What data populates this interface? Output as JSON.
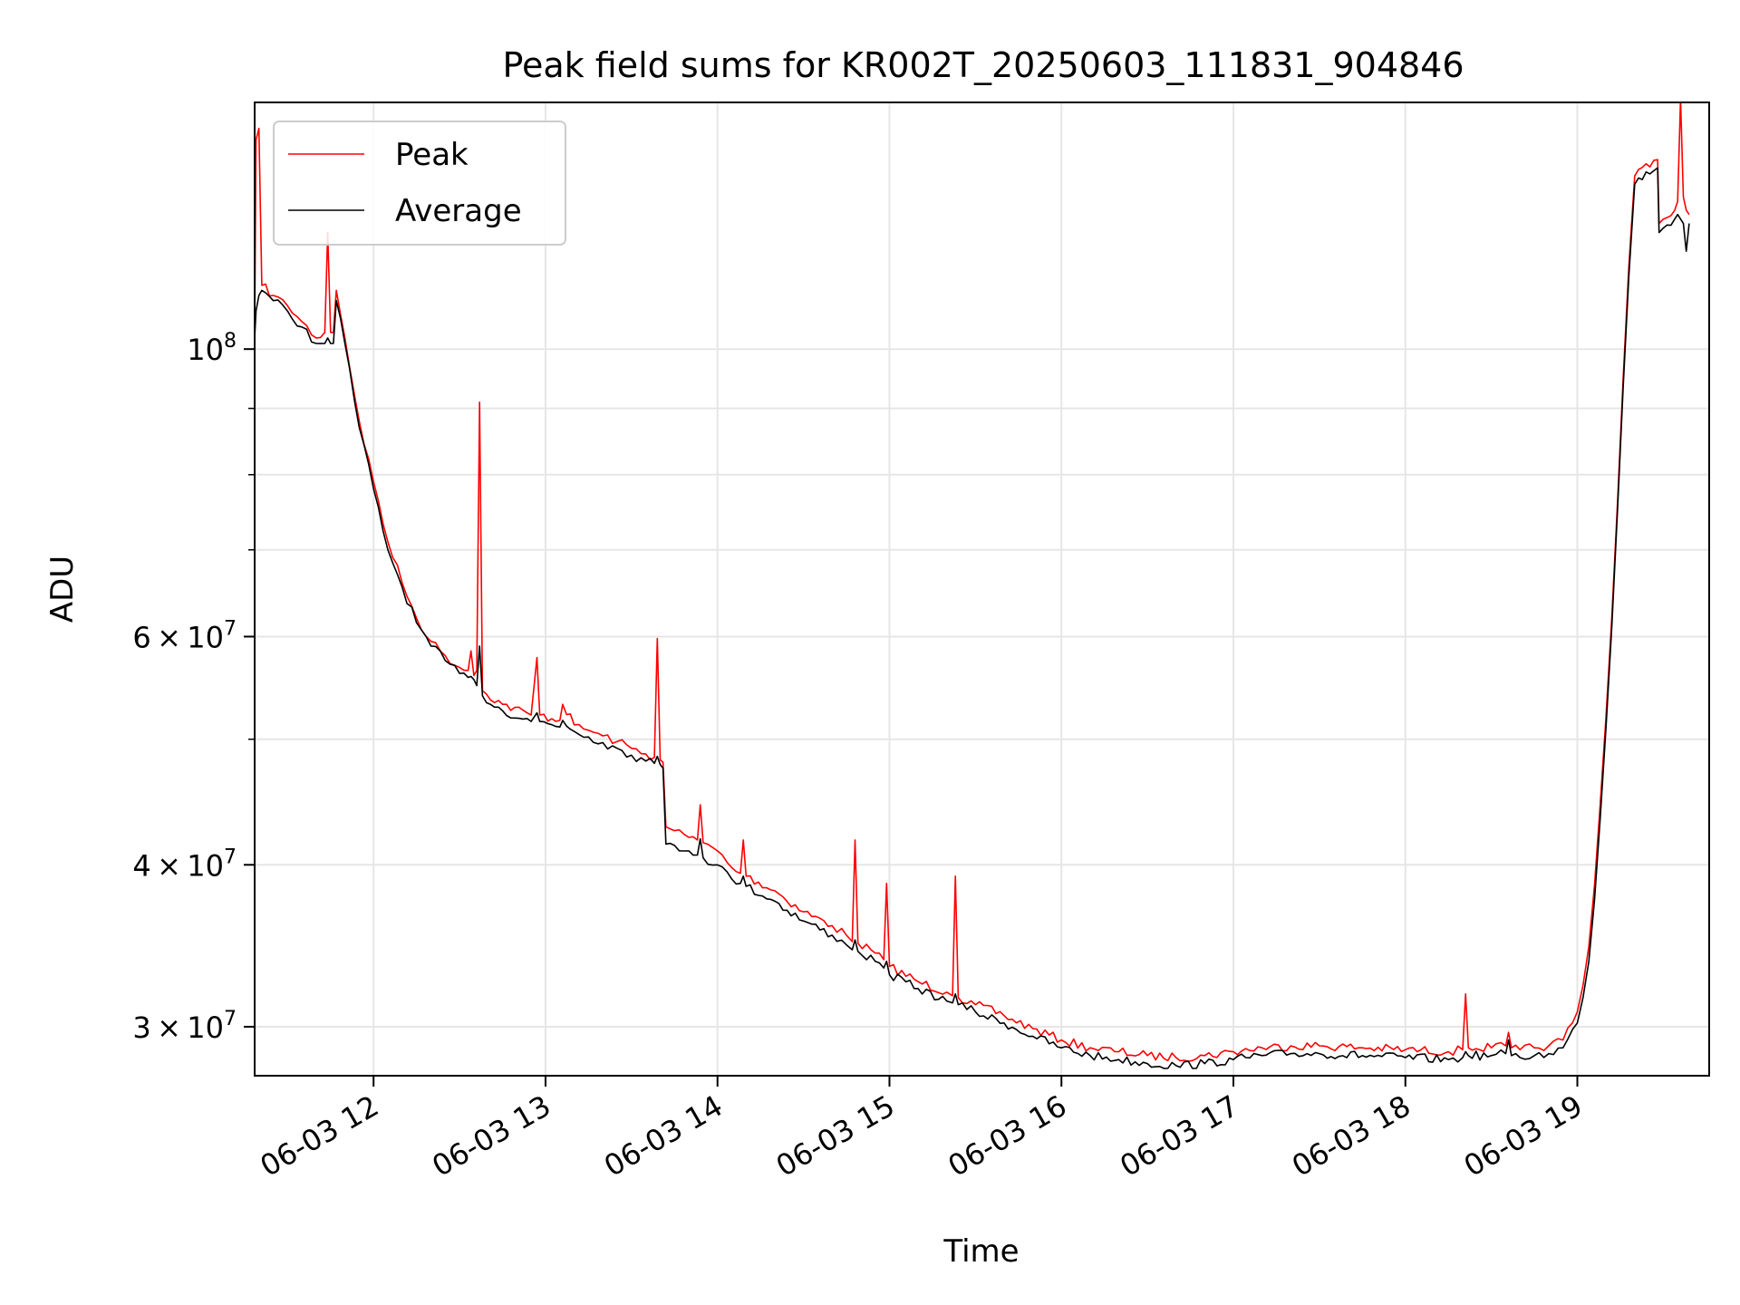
{
  "chart_data": {
    "type": "line",
    "title": "Peak field sums for KR002T_20250603_111831_904846",
    "xlabel": "Time",
    "ylabel": "ADU",
    "yscale": "log",
    "ylim": [
      27500000,
      155000000
    ],
    "xlim": [
      "2025-06-03T11:18:31",
      "2025-06-03T19:46:00"
    ],
    "grid": true,
    "legend_position": "top-left",
    "x_ticks": [
      {
        "value": "2025-06-03T12:00",
        "label": "06-03 12"
      },
      {
        "value": "2025-06-03T13:00",
        "label": "06-03 13"
      },
      {
        "value": "2025-06-03T14:00",
        "label": "06-03 14"
      },
      {
        "value": "2025-06-03T15:00",
        "label": "06-03 15"
      },
      {
        "value": "2025-06-03T16:00",
        "label": "06-03 16"
      },
      {
        "value": "2025-06-03T17:00",
        "label": "06-03 17"
      },
      {
        "value": "2025-06-03T18:00",
        "label": "06-03 18"
      },
      {
        "value": "2025-06-03T19:00",
        "label": "06-03 19"
      }
    ],
    "y_major_ticks": [
      {
        "value": 30000000,
        "mantissa": "3",
        "exponent": "7"
      },
      {
        "value": 40000000,
        "mantissa": "4",
        "exponent": "7"
      },
      {
        "value": 60000000,
        "mantissa": "6",
        "exponent": "7"
      },
      {
        "value": 100000000,
        "mantissa": "",
        "exponent": "8"
      }
    ],
    "y_minor_ticks": [
      50000000,
      70000000,
      80000000,
      90000000
    ],
    "series": [
      {
        "name": "Peak",
        "color": "#ff0000",
        "points": [
          [
            "11:18:31",
            103000000
          ],
          [
            "11:19:00",
            145000000
          ],
          [
            "11:20:00",
            148000000
          ],
          [
            "11:21:00",
            112000000
          ],
          [
            "11:25:00",
            110000000
          ],
          [
            "11:30:00",
            108000000
          ],
          [
            "11:35:00",
            105000000
          ],
          [
            "11:40:00",
            102000000
          ],
          [
            "11:43:00",
            103000000
          ],
          [
            "11:44:00",
            123000000
          ],
          [
            "11:45:00",
            103000000
          ],
          [
            "11:46:00",
            103000000
          ],
          [
            "11:47:00",
            111000000
          ],
          [
            "11:50:00",
            102000000
          ],
          [
            "11:55:00",
            88000000
          ],
          [
            "12:00:00",
            79000000
          ],
          [
            "12:05:00",
            71000000
          ],
          [
            "12:10:00",
            66000000
          ],
          [
            "12:15:00",
            62000000
          ],
          [
            "12:20:00",
            59500000
          ],
          [
            "12:25:00",
            58000000
          ],
          [
            "12:30:00",
            56800000
          ],
          [
            "12:33:00",
            56500000
          ],
          [
            "12:34:00",
            58500000
          ],
          [
            "12:35:00",
            56000000
          ],
          [
            "12:36:00",
            56500000
          ],
          [
            "12:37:00",
            91000000
          ],
          [
            "12:38:00",
            54500000
          ],
          [
            "12:45:00",
            53200000
          ],
          [
            "12:55:00",
            52200000
          ],
          [
            "12:57:00",
            57800000
          ],
          [
            "12:58:00",
            52200000
          ],
          [
            "13:05:00",
            51700000
          ],
          [
            "13:06:00",
            53200000
          ],
          [
            "13:10:00",
            51300000
          ],
          [
            "13:15:00",
            50800000
          ],
          [
            "13:20:00",
            50300000
          ],
          [
            "13:25:00",
            49800000
          ],
          [
            "13:30:00",
            49200000
          ],
          [
            "13:35:00",
            48700000
          ],
          [
            "13:38:00",
            48400000
          ],
          [
            "13:39:00",
            59800000
          ],
          [
            "13:40:00",
            48200000
          ],
          [
            "13:41:00",
            48000000
          ],
          [
            "13:42:00",
            42800000
          ],
          [
            "13:45:00",
            42500000
          ],
          [
            "13:50:00",
            42000000
          ],
          [
            "13:53:00",
            41800000
          ],
          [
            "13:54:00",
            44500000
          ],
          [
            "13:55:00",
            41600000
          ],
          [
            "14:00:00",
            41000000
          ],
          [
            "14:05:00",
            39800000
          ],
          [
            "14:08:00",
            39400000
          ],
          [
            "14:09:00",
            41800000
          ],
          [
            "14:10:00",
            39200000
          ],
          [
            "14:20:00",
            38200000
          ],
          [
            "14:30:00",
            36800000
          ],
          [
            "14:40:00",
            35900000
          ],
          [
            "14:45:00",
            35300000
          ],
          [
            "14:47:00",
            34900000
          ],
          [
            "14:48:00",
            41800000
          ],
          [
            "14:49:00",
            34800000
          ],
          [
            "14:55:00",
            34200000
          ],
          [
            "14:58:00",
            33800000
          ],
          [
            "14:59:00",
            38700000
          ],
          [
            "15:00:00",
            33400000
          ],
          [
            "15:10:00",
            32500000
          ],
          [
            "15:20:00",
            31900000
          ],
          [
            "15:22:00",
            31700000
          ],
          [
            "15:23:00",
            39200000
          ],
          [
            "15:24:00",
            31600000
          ],
          [
            "15:30:00",
            31200000
          ],
          [
            "15:40:00",
            30600000
          ],
          [
            "15:50:00",
            29900000
          ],
          [
            "16:00:00",
            29300000
          ],
          [
            "16:10:00",
            28900000
          ],
          [
            "16:20:00",
            28700000
          ],
          [
            "16:30:00",
            28500000
          ],
          [
            "16:40:00",
            28400000
          ],
          [
            "16:50:00",
            28500000
          ],
          [
            "17:00:00",
            28700000
          ],
          [
            "17:10:00",
            28900000
          ],
          [
            "17:20:00",
            29000000
          ],
          [
            "17:30:00",
            29000000
          ],
          [
            "17:45:00",
            28900000
          ],
          [
            "18:00:00",
            28800000
          ],
          [
            "18:15:00",
            28700000
          ],
          [
            "18:20:00",
            28800000
          ],
          [
            "18:21:00",
            31800000
          ],
          [
            "18:22:00",
            28900000
          ],
          [
            "18:30:00",
            28900000
          ],
          [
            "18:35:00",
            29000000
          ],
          [
            "18:36:00",
            29700000
          ],
          [
            "18:37:00",
            28900000
          ],
          [
            "18:40:00",
            28800000
          ],
          [
            "18:45:00",
            28900000
          ],
          [
            "18:50:00",
            29000000
          ],
          [
            "18:55:00",
            29300000
          ],
          [
            "19:00:00",
            30800000
          ],
          [
            "19:02:00",
            32300000
          ],
          [
            "19:04:00",
            34600000
          ],
          [
            "19:06:00",
            38600000
          ],
          [
            "19:08:00",
            44600000
          ],
          [
            "19:10:00",
            52000000
          ],
          [
            "19:12:00",
            62000000
          ],
          [
            "19:14:00",
            76000000
          ],
          [
            "19:16:00",
            95000000
          ],
          [
            "19:18:00",
            116000000
          ],
          [
            "19:20:00",
            136000000
          ],
          [
            "19:24:00",
            139000000
          ],
          [
            "19:28:00",
            140000000
          ],
          [
            "19:28:30",
            125000000
          ],
          [
            "19:30:00",
            126000000
          ],
          [
            "19:34:00",
            128000000
          ],
          [
            "19:35:00",
            130000000
          ],
          [
            "19:36:00",
            156000000
          ],
          [
            "19:37:00",
            131000000
          ],
          [
            "19:38:00",
            128000000
          ],
          [
            "19:39:00",
            127000000
          ]
        ]
      },
      {
        "name": "Average",
        "color": "#000000",
        "points": [
          [
            "11:18:31",
            102000000
          ],
          [
            "11:19:00",
            107000000
          ],
          [
            "11:20:00",
            110000000
          ],
          [
            "11:21:00",
            111000000
          ],
          [
            "11:25:00",
            109000000
          ],
          [
            "11:30:00",
            107000000
          ],
          [
            "11:35:00",
            104000000
          ],
          [
            "11:40:00",
            101000000
          ],
          [
            "11:43:00",
            101000000
          ],
          [
            "11:44:00",
            102000000
          ],
          [
            "11:45:00",
            101000000
          ],
          [
            "11:46:00",
            101000000
          ],
          [
            "11:47:00",
            109000000
          ],
          [
            "11:50:00",
            101000000
          ],
          [
            "11:55:00",
            87000000
          ],
          [
            "12:00:00",
            78000000
          ],
          [
            "12:05:00",
            70000000
          ],
          [
            "12:10:00",
            65500000
          ],
          [
            "12:15:00",
            61500000
          ],
          [
            "12:20:00",
            59000000
          ],
          [
            "12:25:00",
            57500000
          ],
          [
            "12:30:00",
            56200000
          ],
          [
            "12:33:00",
            55800000
          ],
          [
            "12:34:00",
            55900000
          ],
          [
            "12:35:00",
            55600000
          ],
          [
            "12:36:00",
            55000000
          ],
          [
            "12:37:00",
            59000000
          ],
          [
            "12:38:00",
            54000000
          ],
          [
            "12:45:00",
            52600000
          ],
          [
            "12:55:00",
            51600000
          ],
          [
            "12:57:00",
            52400000
          ],
          [
            "12:58:00",
            51600000
          ],
          [
            "13:05:00",
            51100000
          ],
          [
            "13:06:00",
            51700000
          ],
          [
            "13:10:00",
            50700000
          ],
          [
            "13:15:00",
            50200000
          ],
          [
            "13:20:00",
            49700000
          ],
          [
            "13:25:00",
            49200000
          ],
          [
            "13:30:00",
            48600000
          ],
          [
            "13:35:00",
            48100000
          ],
          [
            "13:38:00",
            47900000
          ],
          [
            "13:39:00",
            48500000
          ],
          [
            "13:40:00",
            47800000
          ],
          [
            "13:41:00",
            47500000
          ],
          [
            "13:42:00",
            41500000
          ],
          [
            "13:45:00",
            41400000
          ],
          [
            "13:50:00",
            41000000
          ],
          [
            "13:53:00",
            40700000
          ],
          [
            "13:54:00",
            41900000
          ],
          [
            "13:55:00",
            40500000
          ],
          [
            "14:00:00",
            40000000
          ],
          [
            "14:05:00",
            39000000
          ],
          [
            "14:08:00",
            38700000
          ],
          [
            "14:09:00",
            39200000
          ],
          [
            "14:10:00",
            38500000
          ],
          [
            "14:20:00",
            37500000
          ],
          [
            "14:30:00",
            36200000
          ],
          [
            "14:40:00",
            35300000
          ],
          [
            "14:45:00",
            34700000
          ],
          [
            "14:47:00",
            34400000
          ],
          [
            "14:48:00",
            35000000
          ],
          [
            "14:49:00",
            34300000
          ],
          [
            "14:55:00",
            33700000
          ],
          [
            "14:58:00",
            33300000
          ],
          [
            "14:59:00",
            33700000
          ],
          [
            "15:00:00",
            32900000
          ],
          [
            "15:10:00",
            32100000
          ],
          [
            "15:20:00",
            31400000
          ],
          [
            "15:22:00",
            31300000
          ],
          [
            "15:23:00",
            31800000
          ],
          [
            "15:24:00",
            31200000
          ],
          [
            "15:30:00",
            30800000
          ],
          [
            "15:40:00",
            30200000
          ],
          [
            "15:50:00",
            29500000
          ],
          [
            "16:00:00",
            28900000
          ],
          [
            "16:10:00",
            28500000
          ],
          [
            "16:20:00",
            28300000
          ],
          [
            "16:30:00",
            28100000
          ],
          [
            "16:40:00",
            28000000
          ],
          [
            "16:50:00",
            28100000
          ],
          [
            "17:00:00",
            28300000
          ],
          [
            "17:10:00",
            28500000
          ],
          [
            "17:20:00",
            28600000
          ],
          [
            "17:30:00",
            28600000
          ],
          [
            "17:45:00",
            28500000
          ],
          [
            "18:00:00",
            28400000
          ],
          [
            "18:15:00",
            28300000
          ],
          [
            "18:20:00",
            28400000
          ],
          [
            "18:21:00",
            28700000
          ],
          [
            "18:22:00",
            28500000
          ],
          [
            "18:30:00",
            28500000
          ],
          [
            "18:35:00",
            28600000
          ],
          [
            "18:36:00",
            29300000
          ],
          [
            "18:37:00",
            28500000
          ],
          [
            "18:40:00",
            28400000
          ],
          [
            "18:45:00",
            28500000
          ],
          [
            "18:50:00",
            28600000
          ],
          [
            "18:55:00",
            28900000
          ],
          [
            "19:00:00",
            30200000
          ],
          [
            "19:02:00",
            31600000
          ],
          [
            "19:04:00",
            33700000
          ],
          [
            "19:06:00",
            37600000
          ],
          [
            "19:08:00",
            43500000
          ],
          [
            "19:10:00",
            51000000
          ],
          [
            "19:12:00",
            61000000
          ],
          [
            "19:14:00",
            75000000
          ],
          [
            "19:16:00",
            93500000
          ],
          [
            "19:18:00",
            114000000
          ],
          [
            "19:20:00",
            134000000
          ],
          [
            "19:24:00",
            137000000
          ],
          [
            "19:28:00",
            138000000
          ],
          [
            "19:28:30",
            123000000
          ],
          [
            "19:30:00",
            124000000
          ],
          [
            "19:34:00",
            126000000
          ],
          [
            "19:35:00",
            127000000
          ],
          [
            "19:36:00",
            126000000
          ],
          [
            "19:37:00",
            125000000
          ],
          [
            "19:38:00",
            119000000
          ],
          [
            "19:39:00",
            125000000
          ]
        ]
      }
    ]
  }
}
